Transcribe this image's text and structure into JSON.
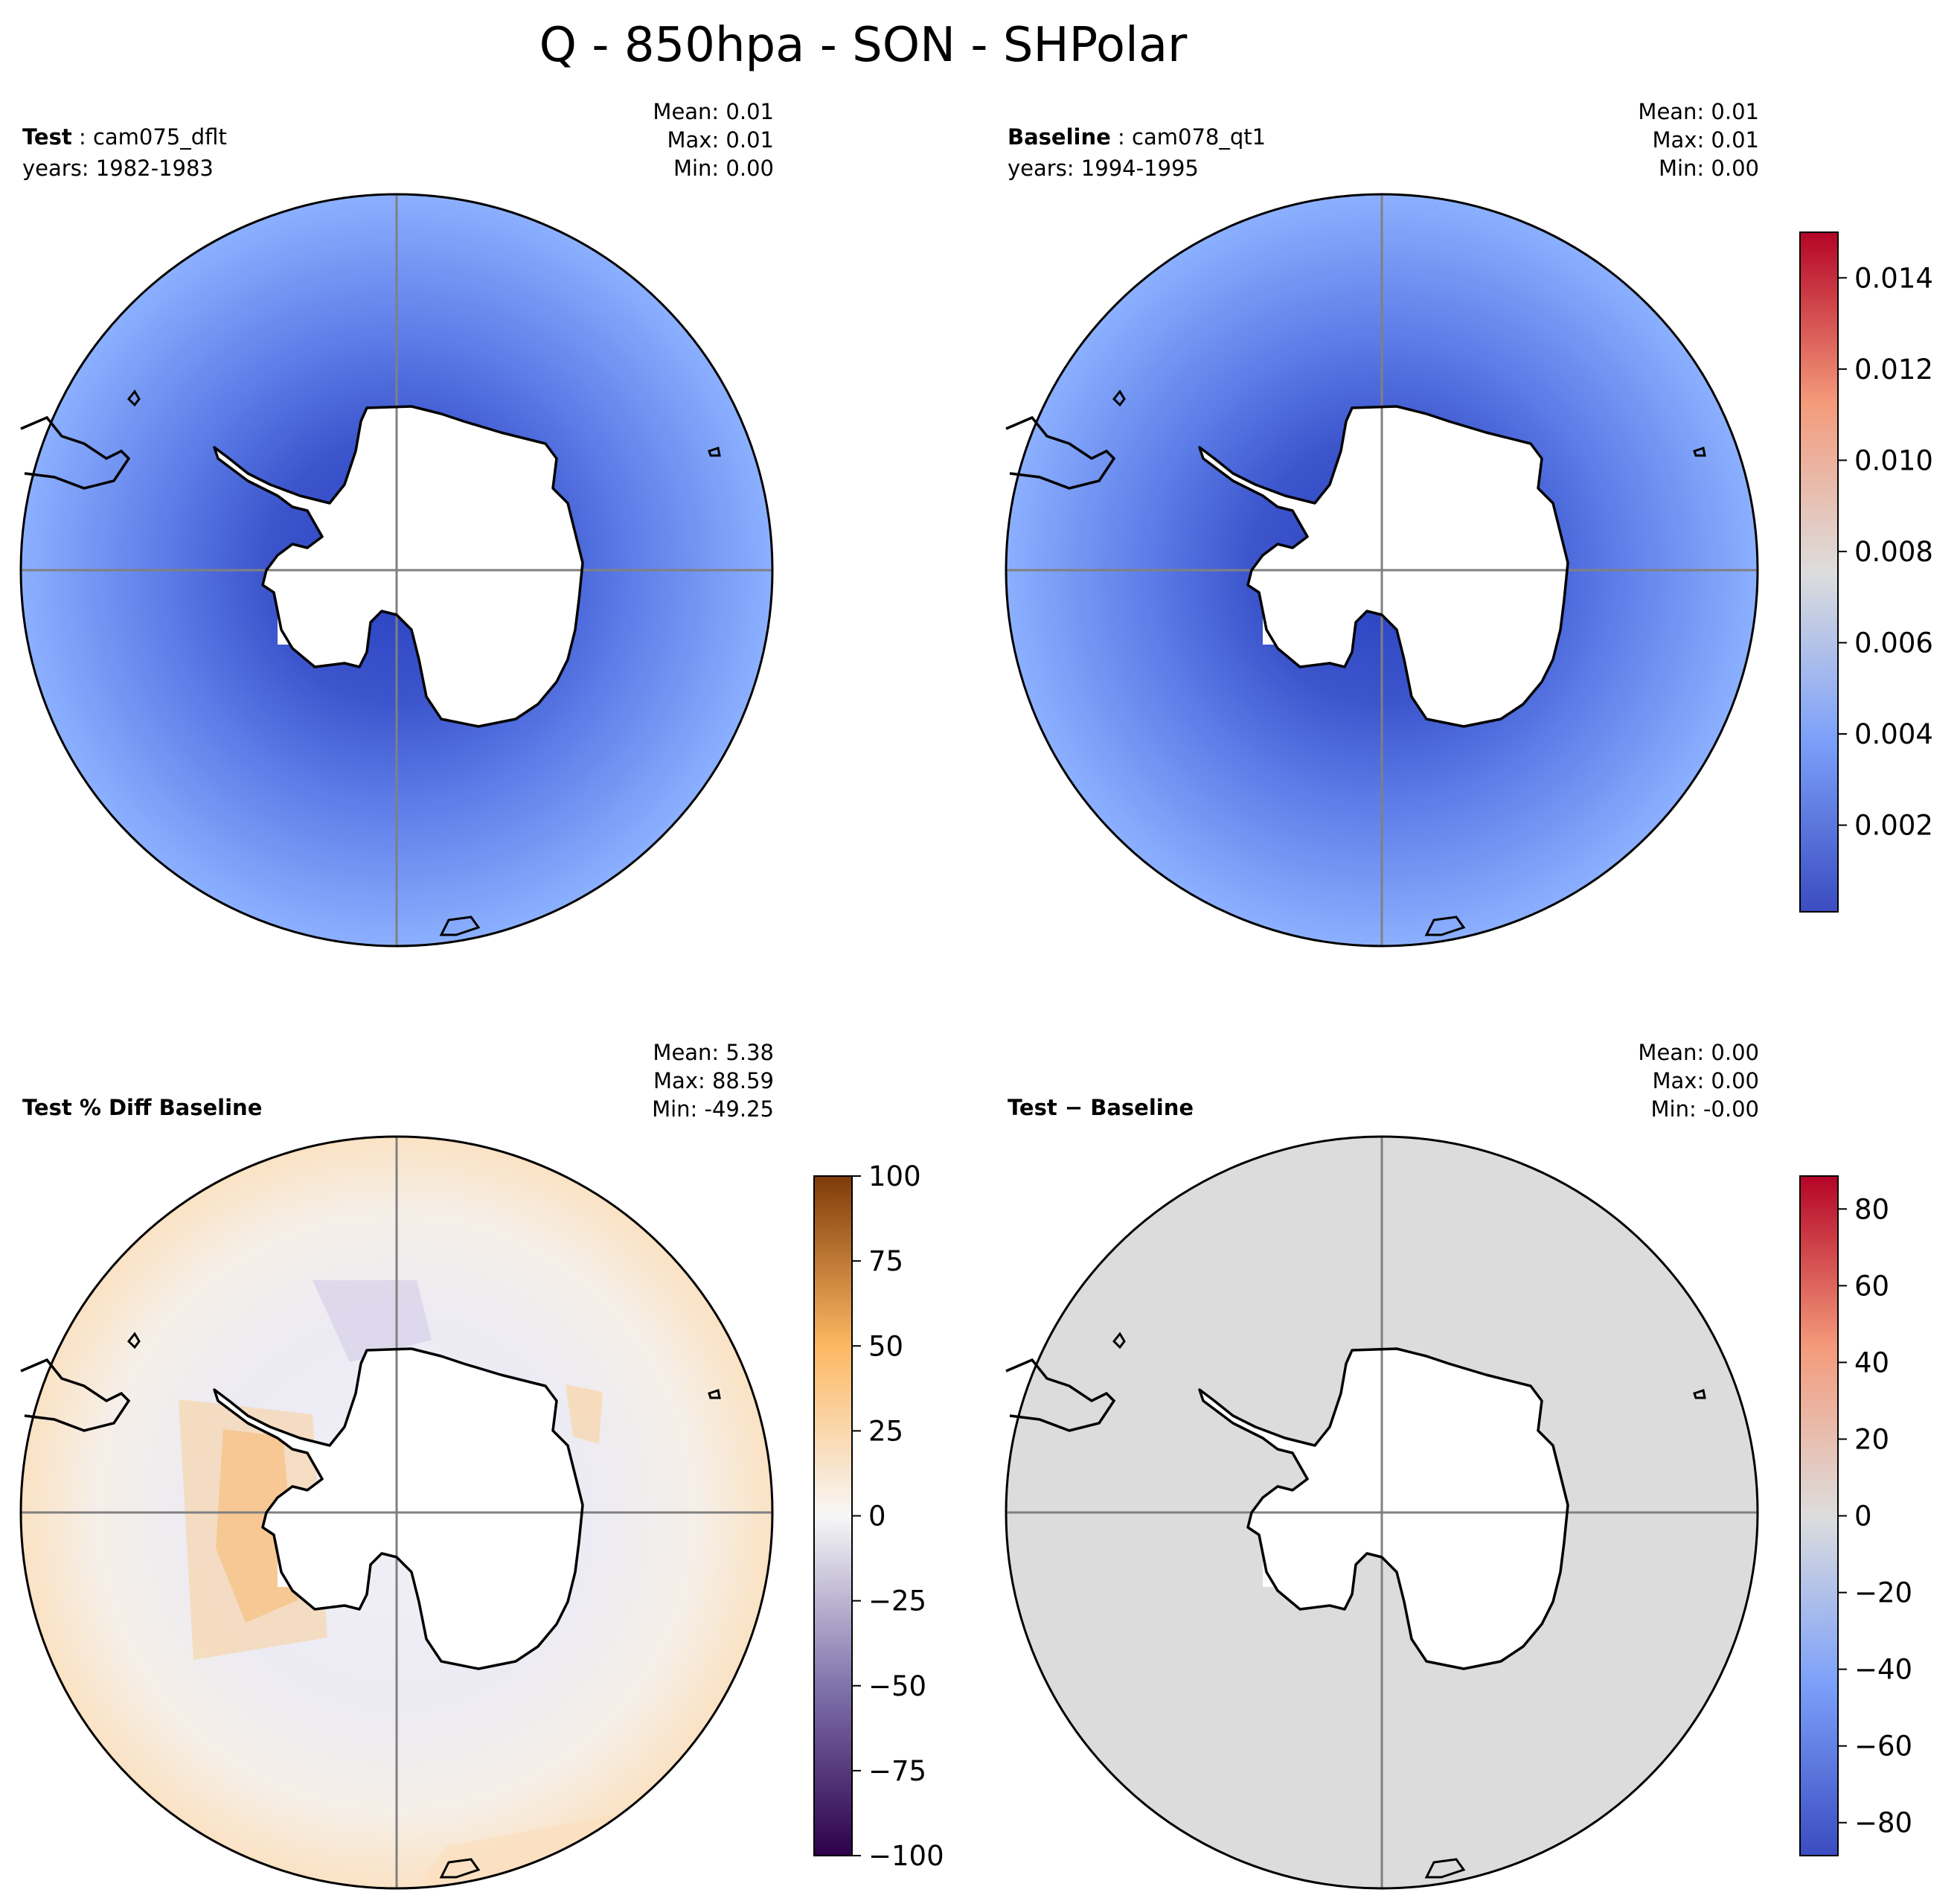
{
  "figure": {
    "title": "Q - 850hpa - SON - SHPolar"
  },
  "panels": [
    {
      "id": "test",
      "label_bold": "Test",
      "label_sep": " : ",
      "label_case": "cam075_dflt",
      "years": "years: 1982-1983",
      "stats": {
        "mean": "Mean:  0.01",
        "max": "Max:  0.01",
        "min": "Min:  0.00"
      },
      "fill": "blue"
    },
    {
      "id": "baseline",
      "label_bold": "Baseline",
      "label_sep": " : ",
      "label_case": "cam078_qt1",
      "years": "years: 1994-1995",
      "stats": {
        "mean": "Mean:  0.01",
        "max": "Max:  0.01",
        "min": "Min:  0.00"
      },
      "fill": "blue"
    },
    {
      "id": "pctdiff",
      "label_bold": "Test % Diff Baseline",
      "stats": {
        "mean": "Mean:  5.38",
        "max": "Max: 88.59",
        "min": "Min: -49.25"
      },
      "fill": "pct"
    },
    {
      "id": "diff",
      "label_bold": "Test − Baseline",
      "stats": {
        "mean": "Mean:  0.00",
        "max": "Max:  0.00",
        "min": "Min: -0.00"
      },
      "fill": "grey"
    }
  ],
  "colorbars": [
    {
      "id": "cbar-top",
      "cmap": "coolwarm",
      "range": [
        0.0001,
        0.015
      ],
      "ticks": [
        {
          "value": 0.002,
          "label": "0.002"
        },
        {
          "value": 0.004,
          "label": "0.004"
        },
        {
          "value": 0.006,
          "label": "0.006"
        },
        {
          "value": 0.008,
          "label": "0.008"
        },
        {
          "value": 0.01,
          "label": "0.010"
        },
        {
          "value": 0.012,
          "label": "0.012"
        },
        {
          "value": 0.014,
          "label": "0.014"
        }
      ]
    },
    {
      "id": "cbar-pct",
      "cmap": "PuOr_r",
      "range": [
        -100,
        100
      ],
      "ticks": [
        {
          "value": -100,
          "label": "−100"
        },
        {
          "value": -75,
          "label": "−75"
        },
        {
          "value": -50,
          "label": "−50"
        },
        {
          "value": -25,
          "label": "−25"
        },
        {
          "value": 0,
          "label": "0"
        },
        {
          "value": 25,
          "label": "25"
        },
        {
          "value": 50,
          "label": "50"
        },
        {
          "value": 75,
          "label": "75"
        },
        {
          "value": 100,
          "label": "100"
        }
      ]
    },
    {
      "id": "cbar-diff",
      "cmap": "coolwarm",
      "range": [
        -88.59,
        88.59
      ],
      "ticks": [
        {
          "value": -80,
          "label": "−80"
        },
        {
          "value": -60,
          "label": "−60"
        },
        {
          "value": -40,
          "label": "−40"
        },
        {
          "value": -20,
          "label": "−20"
        },
        {
          "value": 0,
          "label": "0"
        },
        {
          "value": 20,
          "label": "20"
        },
        {
          "value": 40,
          "label": "40"
        },
        {
          "value": 60,
          "label": "60"
        },
        {
          "value": 80,
          "label": "80"
        }
      ]
    }
  ],
  "colors": {
    "field_blue_dark": "#3b54c8",
    "field_blue_light": "#8cb0ff",
    "diff_grey": "#dcdcdc",
    "pct_orange": "#f8c88a",
    "pct_purple": "#d8d4ea",
    "land": "#ffffff",
    "gridline": "#808080"
  }
}
